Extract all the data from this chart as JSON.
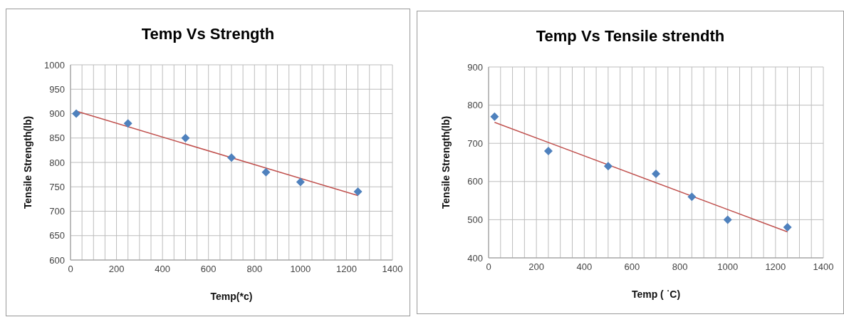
{
  "chart_data": [
    {
      "type": "scatter",
      "title": "Temp Vs Strength",
      "xlabel": "Temp(*c)",
      "ylabel": "Tensile Strength(lb)",
      "xlim": [
        0,
        1400
      ],
      "ylim": [
        600,
        1000
      ],
      "xticks": [
        0,
        {
          "value": 50,
          "label": null
        },
        {
          "value": 100,
          "label": null
        },
        {
          "value": 150,
          "label": null
        },
        200,
        {
          "value": 250,
          "label": null
        },
        {
          "value": 300,
          "label": null
        },
        {
          "value": 350,
          "label": null
        },
        400,
        {
          "value": 450,
          "label": null
        },
        {
          "value": 500,
          "label": null
        },
        {
          "value": 550,
          "label": null
        },
        600,
        {
          "value": 650,
          "label": null
        },
        {
          "value": 700,
          "label": null
        },
        {
          "value": 750,
          "label": null
        },
        800,
        {
          "value": 850,
          "label": null
        },
        {
          "value": 900,
          "label": null
        },
        {
          "value": 950,
          "label": null
        },
        1000,
        {
          "value": 1050,
          "label": null
        },
        {
          "value": 1100,
          "label": null
        },
        {
          "value": 1150,
          "label": null
        },
        1200,
        {
          "value": 1250,
          "label": null
        },
        {
          "value": 1300,
          "label": null
        },
        {
          "value": 1350,
          "label": null
        },
        1400
      ],
      "yticks": [
        600,
        650,
        700,
        750,
        800,
        850,
        900,
        950,
        1000
      ],
      "grid": true,
      "series": [
        {
          "type": "scatter",
          "color": "#4f81bd",
          "marker": "diamond",
          "x": [
            25,
            250,
            500,
            700,
            850,
            1000,
            1250
          ],
          "values": [
            900,
            880,
            850,
            810,
            780,
            760,
            740
          ]
        },
        {
          "type": "line",
          "color": "#c0504d",
          "x": [
            25,
            1250
          ],
          "values": [
            905,
            732
          ]
        }
      ]
    },
    {
      "type": "scatter",
      "title": "Temp Vs Tensile strendth",
      "xlabel": "Temp ( ˙C)",
      "ylabel": "Tensile Strength(lb)",
      "xlim": [
        0,
        1400
      ],
      "ylim": [
        400,
        900
      ],
      "xticks": [
        0,
        {
          "value": 50,
          "label": null
        },
        {
          "value": 100,
          "label": null
        },
        {
          "value": 150,
          "label": null
        },
        200,
        {
          "value": 250,
          "label": null
        },
        {
          "value": 300,
          "label": null
        },
        {
          "value": 350,
          "label": null
        },
        400,
        {
          "value": 450,
          "label": null
        },
        {
          "value": 500,
          "label": null
        },
        {
          "value": 550,
          "label": null
        },
        600,
        {
          "value": 650,
          "label": null
        },
        {
          "value": 700,
          "label": null
        },
        {
          "value": 750,
          "label": null
        },
        800,
        {
          "value": 850,
          "label": null
        },
        {
          "value": 900,
          "label": null
        },
        {
          "value": 950,
          "label": null
        },
        1000,
        {
          "value": 1050,
          "label": null
        },
        {
          "value": 1100,
          "label": null
        },
        {
          "value": 1150,
          "label": null
        },
        1200,
        {
          "value": 1250,
          "label": null
        },
        {
          "value": 1300,
          "label": null
        },
        {
          "value": 1350,
          "label": null
        },
        1400
      ],
      "yticks": [
        400,
        500,
        600,
        700,
        800,
        900
      ],
      "grid": true,
      "series": [
        {
          "type": "scatter",
          "color": "#4f81bd",
          "marker": "diamond",
          "x": [
            25,
            250,
            500,
            700,
            850,
            1000,
            1250
          ],
          "values": [
            770,
            680,
            640,
            620,
            560,
            500,
            480
          ]
        },
        {
          "type": "line",
          "color": "#c0504d",
          "x": [
            25,
            1250
          ],
          "values": [
            755,
            468
          ]
        }
      ]
    }
  ]
}
